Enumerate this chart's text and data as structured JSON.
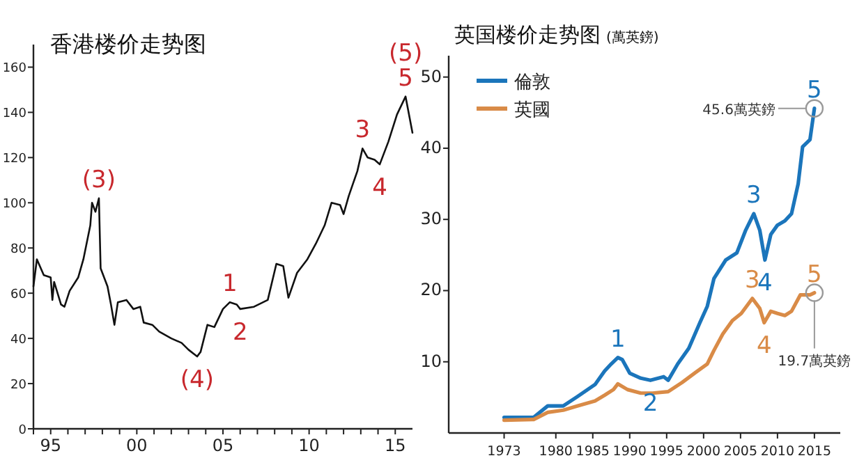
{
  "chart_data": [
    {
      "type": "line",
      "title": "香港楼价走势图",
      "xlim": [
        1994,
        2016
      ],
      "ylim": [
        0,
        170
      ],
      "xticks": [
        {
          "value": 1994,
          "label": null
        },
        {
          "value": 1995,
          "label": "95"
        },
        {
          "value": 1996,
          "label": null
        },
        {
          "value": 1997,
          "label": null
        },
        {
          "value": 1998,
          "label": null
        },
        {
          "value": 1999,
          "label": null
        },
        {
          "value": 2000,
          "label": "00"
        },
        {
          "value": 2001,
          "label": null
        },
        {
          "value": 2002,
          "label": null
        },
        {
          "value": 2003,
          "label": null
        },
        {
          "value": 2004,
          "label": null
        },
        {
          "value": 2005,
          "label": "05"
        },
        {
          "value": 2006,
          "label": null
        },
        {
          "value": 2007,
          "label": null
        },
        {
          "value": 2008,
          "label": null
        },
        {
          "value": 2009,
          "label": null
        },
        {
          "value": 2010,
          "label": "10"
        },
        {
          "value": 2011,
          "label": null
        },
        {
          "value": 2012,
          "label": null
        },
        {
          "value": 2013,
          "label": null
        },
        {
          "value": 2014,
          "label": null
        },
        {
          "value": 2015,
          "label": "15"
        }
      ],
      "yticks": [
        0,
        20,
        40,
        60,
        80,
        100,
        120,
        140,
        160
      ],
      "series": [
        {
          "color": "#111111",
          "x": [
            1994.0,
            1994.2,
            1994.6,
            1995.0,
            1995.1,
            1995.2,
            1995.6,
            1995.8,
            1996.1,
            1996.6,
            1996.9,
            1997.3,
            1997.4,
            1997.6,
            1997.8,
            1997.9,
            1998.3,
            1998.5,
            1998.7,
            1998.9,
            1999.4,
            1999.8,
            2000.2,
            2000.4,
            2000.9,
            2001.3,
            2002.0,
            2002.6,
            2003.0,
            2003.5,
            2003.7,
            2004.1,
            2004.5,
            2005.0,
            2005.4,
            2005.8,
            2006.0,
            2006.8,
            2007.6,
            2008.1,
            2008.5,
            2008.8,
            2009.3,
            2009.9,
            2010.4,
            2010.9,
            2011.3,
            2011.8,
            2012.0,
            2012.3,
            2012.8,
            2013.1,
            2013.4,
            2013.8,
            2014.1,
            2014.6,
            2015.1,
            2015.6,
            2016.0
          ],
          "values": [
            63,
            75,
            68,
            67,
            57,
            65,
            55,
            54,
            61,
            67,
            75,
            90,
            100,
            96,
            102,
            71,
            63,
            55,
            46,
            56,
            57,
            53,
            54,
            47,
            46,
            43,
            40,
            38,
            35,
            32,
            34,
            46,
            45,
            53,
            56,
            55,
            53,
            54,
            57,
            73,
            72,
            58,
            69,
            75,
            82,
            90,
            100,
            99,
            95,
            103,
            114,
            124,
            120,
            119,
            117,
            127,
            139,
            147,
            131
          ]
        }
      ],
      "annotations": [
        {
          "text": "(3)",
          "x": 1997.8,
          "y": 102
        },
        {
          "text": "(4)",
          "x": 2003.5,
          "y": 32
        },
        {
          "text": "1",
          "x": 2005.4,
          "y": 56
        },
        {
          "text": "2",
          "x": 2006.0,
          "y": 53
        },
        {
          "text": "3",
          "x": 2013.1,
          "y": 124
        },
        {
          "text": "4",
          "x": 2014.1,
          "y": 117
        },
        {
          "text": "5",
          "x": 2015.6,
          "y": 147
        },
        {
          "text": "(5)",
          "x": 2015.6,
          "y": 147
        }
      ]
    },
    {
      "type": "line",
      "title": "英国楼价走势图",
      "subtitle": "(萬英鎊)",
      "xlim": [
        1965.5,
        2018.5
      ],
      "ylim": [
        0,
        53
      ],
      "xticks": [
        1973,
        1980,
        1985,
        1990,
        1995,
        2000,
        2005,
        2010,
        2015
      ],
      "yticks": [
        10,
        20,
        30,
        40,
        50
      ],
      "legend": "top left",
      "series": [
        {
          "name": "倫敦",
          "color": "#1b75bb",
          "x": [
            1973,
            1977,
            1978.9,
            1981,
            1982.9,
            1985.3,
            1986.6,
            1987.5,
            1988.4,
            1989,
            1990,
            1991.5,
            1992.8,
            1994.6,
            1995.2,
            1996.5,
            1998,
            1999.5,
            2000.5,
            2001.4,
            2003,
            2004.5,
            2005.7,
            2006.8,
            2007.6,
            2008.3,
            2009.1,
            2010,
            2011,
            2011.9,
            2012.8,
            2013.4,
            2014.4,
            2015
          ],
          "values": [
            2.2,
            2.2,
            3.8,
            3.8,
            5.1,
            6.8,
            8.7,
            9.7,
            10.6,
            10.3,
            8.4,
            7.7,
            7.4,
            7.9,
            7.4,
            9.7,
            11.9,
            15.5,
            17.8,
            21.7,
            24.3,
            25.3,
            28.5,
            30.8,
            28.5,
            24.3,
            27.9,
            29.2,
            29.8,
            30.8,
            35,
            40.2,
            41.2,
            45.6
          ]
        },
        {
          "name": "英國",
          "color": "#d98b47",
          "x": [
            1973,
            1977,
            1978.9,
            1981,
            1982.9,
            1985.3,
            1986.6,
            1987.8,
            1988.4,
            1989.7,
            1991.5,
            1993.1,
            1995.2,
            1997.1,
            1998.9,
            2000.5,
            2001.4,
            2002.6,
            2003.9,
            2005.1,
            2006.6,
            2007.6,
            2008.2,
            2009.1,
            2010,
            2011,
            2011.9,
            2013.1,
            2014.4,
            2015
          ],
          "values": [
            1.8,
            1.9,
            2.9,
            3.2,
            3.8,
            4.5,
            5.3,
            6.1,
            6.9,
            6.1,
            5.6,
            5.6,
            5.8,
            7.1,
            8.5,
            9.7,
            11.6,
            13.9,
            15.8,
            16.8,
            18.9,
            17.5,
            15.5,
            17.1,
            16.8,
            16.5,
            17.1,
            19.4,
            19.4,
            19.7
          ]
        }
      ],
      "annotations": [
        {
          "text": "1",
          "x": 1988.4,
          "y": 10.6
        },
        {
          "text": "2",
          "x": 1992.8,
          "y": 7.4
        },
        {
          "text": "3",
          "x": 2006.8,
          "y": 30.8
        },
        {
          "text": "4",
          "x": 2008.3,
          "y": 24.3
        },
        {
          "text": "5",
          "x": 2015,
          "y": 45.6
        },
        {
          "text": "3",
          "x": 2006.6,
          "y": 18.9
        },
        {
          "text": "4",
          "x": 2008.2,
          "y": 15.5
        },
        {
          "text": "5",
          "x": 2015,
          "y": 19.7
        },
        {
          "text": "45.6萬英鎊",
          "x": 2015,
          "y": 45.6
        },
        {
          "text": "19.7萬英鎊",
          "x": 2015,
          "y": 19.7
        }
      ]
    }
  ]
}
